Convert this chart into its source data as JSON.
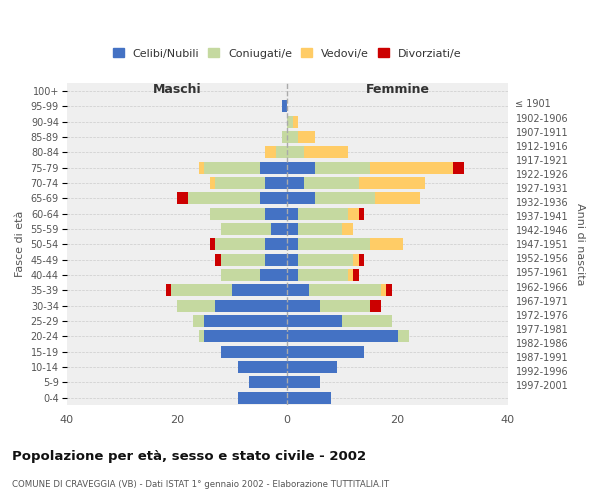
{
  "age_groups": [
    "0-4",
    "5-9",
    "10-14",
    "15-19",
    "20-24",
    "25-29",
    "30-34",
    "35-39",
    "40-44",
    "45-49",
    "50-54",
    "55-59",
    "60-64",
    "65-69",
    "70-74",
    "75-79",
    "80-84",
    "85-89",
    "90-94",
    "95-99",
    "100+"
  ],
  "birth_years": [
    "1997-2001",
    "1992-1996",
    "1987-1991",
    "1982-1986",
    "1977-1981",
    "1972-1976",
    "1967-1971",
    "1962-1966",
    "1957-1961",
    "1952-1956",
    "1947-1951",
    "1942-1946",
    "1937-1941",
    "1932-1936",
    "1927-1931",
    "1922-1926",
    "1917-1921",
    "1912-1916",
    "1907-1911",
    "1902-1906",
    "≤ 1901"
  ],
  "male": {
    "celibi": [
      9,
      7,
      9,
      12,
      15,
      15,
      13,
      10,
      5,
      4,
      4,
      3,
      4,
      5,
      4,
      5,
      0,
      0,
      0,
      1,
      0
    ],
    "coniugati": [
      0,
      0,
      0,
      0,
      1,
      2,
      7,
      11,
      7,
      8,
      9,
      9,
      10,
      13,
      9,
      10,
      2,
      1,
      0,
      0,
      0
    ],
    "vedovi": [
      0,
      0,
      0,
      0,
      0,
      0,
      0,
      0,
      0,
      0,
      0,
      0,
      0,
      0,
      1,
      1,
      2,
      0,
      0,
      0,
      0
    ],
    "divorziati": [
      0,
      0,
      0,
      0,
      0,
      0,
      0,
      1,
      0,
      1,
      1,
      0,
      0,
      2,
      0,
      0,
      0,
      0,
      0,
      0,
      0
    ]
  },
  "female": {
    "nubili": [
      8,
      6,
      9,
      14,
      20,
      10,
      6,
      4,
      2,
      2,
      2,
      2,
      2,
      5,
      3,
      5,
      0,
      0,
      0,
      0,
      0
    ],
    "coniugate": [
      0,
      0,
      0,
      0,
      2,
      9,
      9,
      13,
      9,
      10,
      13,
      8,
      9,
      11,
      10,
      10,
      3,
      2,
      1,
      0,
      0
    ],
    "vedove": [
      0,
      0,
      0,
      0,
      0,
      0,
      0,
      1,
      1,
      1,
      6,
      2,
      2,
      8,
      12,
      15,
      8,
      3,
      1,
      0,
      0
    ],
    "divorziate": [
      0,
      0,
      0,
      0,
      0,
      0,
      2,
      1,
      1,
      1,
      0,
      0,
      1,
      0,
      0,
      2,
      0,
      0,
      0,
      0,
      0
    ]
  },
  "colors": {
    "celibi": "#4472C4",
    "coniugati": "#C5D9A0",
    "vedovi": "#FFCC66",
    "divorziati": "#CC0000"
  },
  "title": "Popolazione per età, sesso e stato civile - 2002",
  "subtitle": "COMUNE DI CRAVEGGIA (VB) - Dati ISTAT 1° gennaio 2002 - Elaborazione TUTTITALIA.IT",
  "xlabel_left": "Maschi",
  "xlabel_right": "Femmine",
  "ylabel_left": "Fasce di età",
  "ylabel_right": "Anni di nascita",
  "xlim": 40,
  "bg_color": "#ffffff",
  "plot_bg_color": "#efefef",
  "grid_color": "#cccccc",
  "legend_labels": [
    "Celibi/Nubili",
    "Coniugati/e",
    "Vedovi/e",
    "Divorziati/e"
  ]
}
